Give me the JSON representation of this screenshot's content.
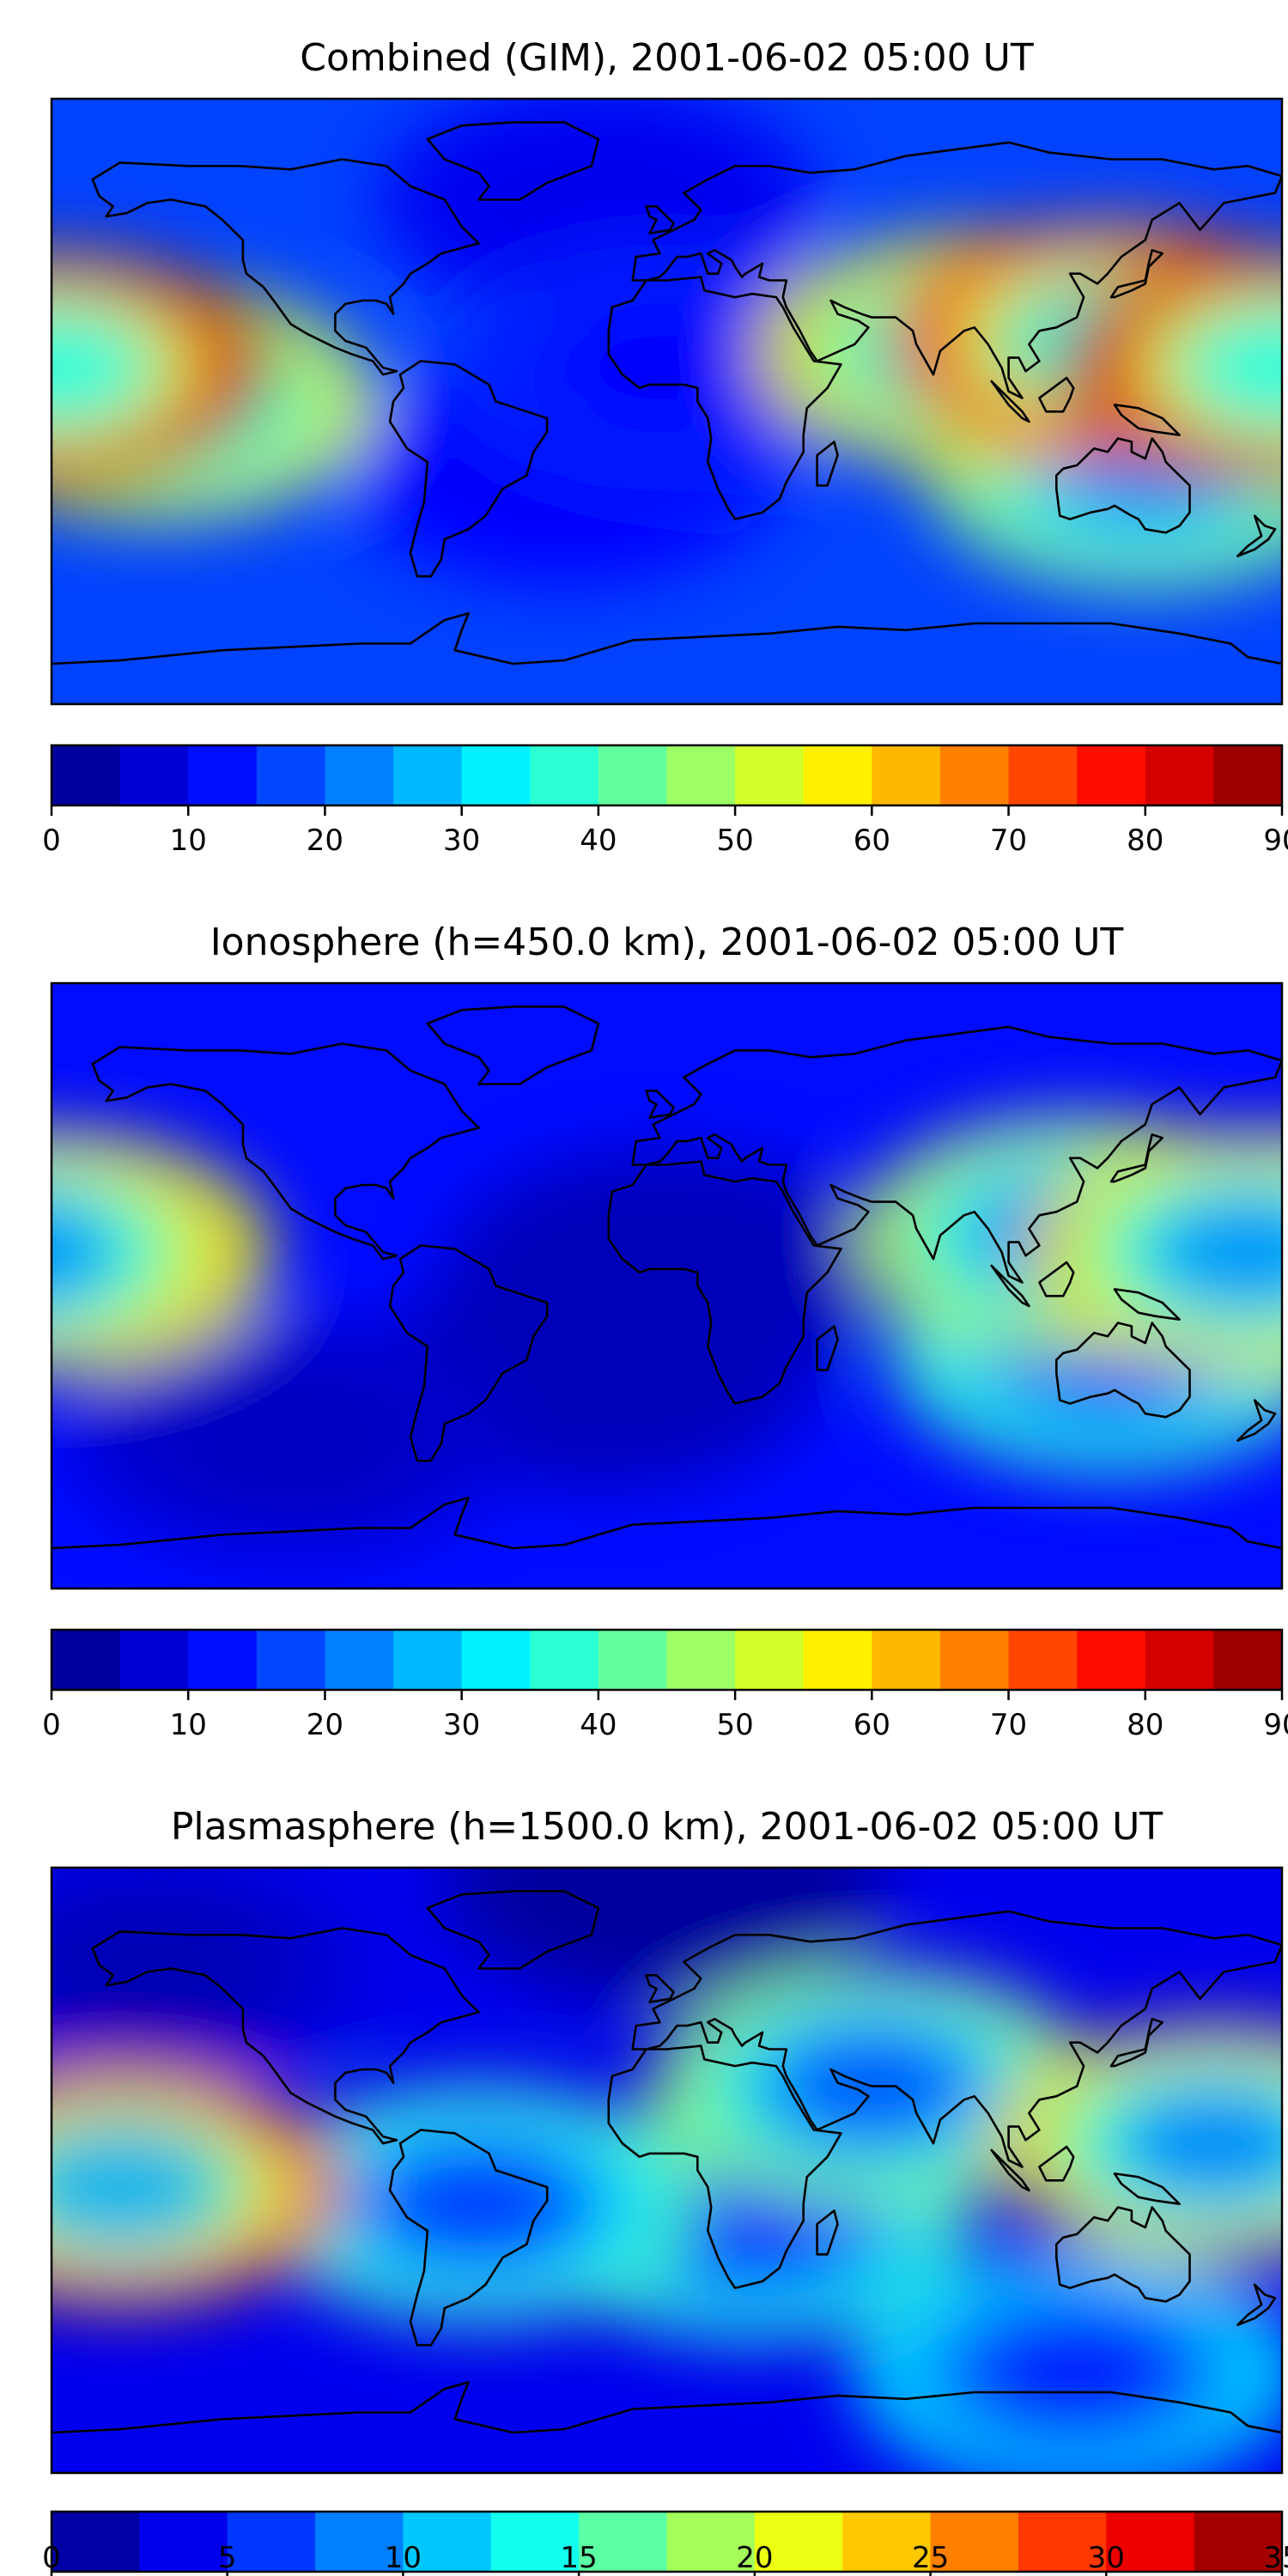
{
  "chart_data": [
    {
      "type": "heatmap",
      "title": "Combined (GIM), 2001-06-02 05:00 UT",
      "xlabel": "",
      "ylabel": "",
      "colorbar": {
        "range": [
          0,
          90
        ],
        "levels": 18,
        "ticks": [
          0,
          10,
          20,
          30,
          40,
          50,
          60,
          70,
          80,
          90
        ],
        "tick_labels": [
          "0",
          "10",
          "20",
          "30",
          "40",
          "50",
          "60",
          "70",
          "80",
          "90"
        ]
      },
      "features": [
        {
          "name": "dateline-maximum",
          "lon": -180,
          "lat": 10,
          "value": 85
        },
        {
          "name": "central-pacific-band",
          "lon": -150,
          "lat": 0,
          "value": 55
        },
        {
          "name": "east-asia-maximum",
          "lon": 130,
          "lat": 18,
          "value": 78
        },
        {
          "name": "south-asia-band",
          "lon": 90,
          "lat": 15,
          "value": 60
        },
        {
          "name": "australia-band",
          "lon": 140,
          "lat": -20,
          "value": 48
        },
        {
          "name": "south-atlantic-minimum",
          "lon": -30,
          "lat": -20,
          "value": 12
        },
        {
          "name": "north-atlantic-low",
          "lon": -20,
          "lat": 60,
          "value": 10
        },
        {
          "name": "north-africa-low",
          "lon": 0,
          "lat": 10,
          "value": 15
        }
      ]
    },
    {
      "type": "heatmap",
      "title": "Ionosphere  (h=450.0 km), 2001-06-02 05:00 UT",
      "xlabel": "",
      "ylabel": "",
      "colorbar": {
        "range": [
          0,
          90
        ],
        "levels": 18,
        "ticks": [
          0,
          10,
          20,
          30,
          40,
          50,
          60,
          70,
          80,
          90
        ],
        "tick_labels": [
          "0",
          "10",
          "20",
          "30",
          "40",
          "50",
          "60",
          "70",
          "80",
          "90"
        ]
      },
      "features": [
        {
          "name": "dateline-maximum",
          "lon": -180,
          "lat": 10,
          "value": 55
        },
        {
          "name": "asia-maximum",
          "lon": 120,
          "lat": 15,
          "value": 52
        },
        {
          "name": "west-pacific-band",
          "lon": 170,
          "lat": 10,
          "value": 60
        },
        {
          "name": "australia-band",
          "lon": 130,
          "lat": -20,
          "value": 40
        },
        {
          "name": "south-atlantic-minimum",
          "lon": -20,
          "lat": -25,
          "value": 5
        },
        {
          "name": "west-africa-minimum",
          "lon": 0,
          "lat": 5,
          "value": 5
        },
        {
          "name": "south-pacific-low",
          "lon": -110,
          "lat": -45,
          "value": 7
        }
      ]
    },
    {
      "type": "heatmap",
      "title": "Plasmasphere (h=1500.0 km), 2001-06-02 05:00 UT",
      "xlabel": "",
      "ylabel": "",
      "colorbar": {
        "range": [
          0,
          35
        ],
        "levels": 14,
        "ticks": [
          0,
          5,
          10,
          15,
          20,
          25,
          30,
          35
        ],
        "tick_labels": [
          "0",
          "5",
          "10",
          "15",
          "20",
          "25",
          "30",
          "35"
        ]
      },
      "features": [
        {
          "name": "east-pacific-maximum",
          "lon": -160,
          "lat": -5,
          "value": 29
        },
        {
          "name": "west-pacific-maximum",
          "lon": 160,
          "lat": 8,
          "value": 24
        },
        {
          "name": "asia-band",
          "lon": 60,
          "lat": 25,
          "value": 19
        },
        {
          "name": "south-america-band",
          "lon": -55,
          "lat": -10,
          "value": 16
        },
        {
          "name": "south-africa-band",
          "lon": 25,
          "lat": -15,
          "value": 15
        },
        {
          "name": "southern-ocean-band",
          "lon": 120,
          "lat": -60,
          "value": 13
        },
        {
          "name": "northern-polar-low",
          "lon": 0,
          "lat": 85,
          "value": 1
        },
        {
          "name": "north-pacific-low",
          "lon": -150,
          "lat": 60,
          "value": 3
        }
      ]
    }
  ]
}
